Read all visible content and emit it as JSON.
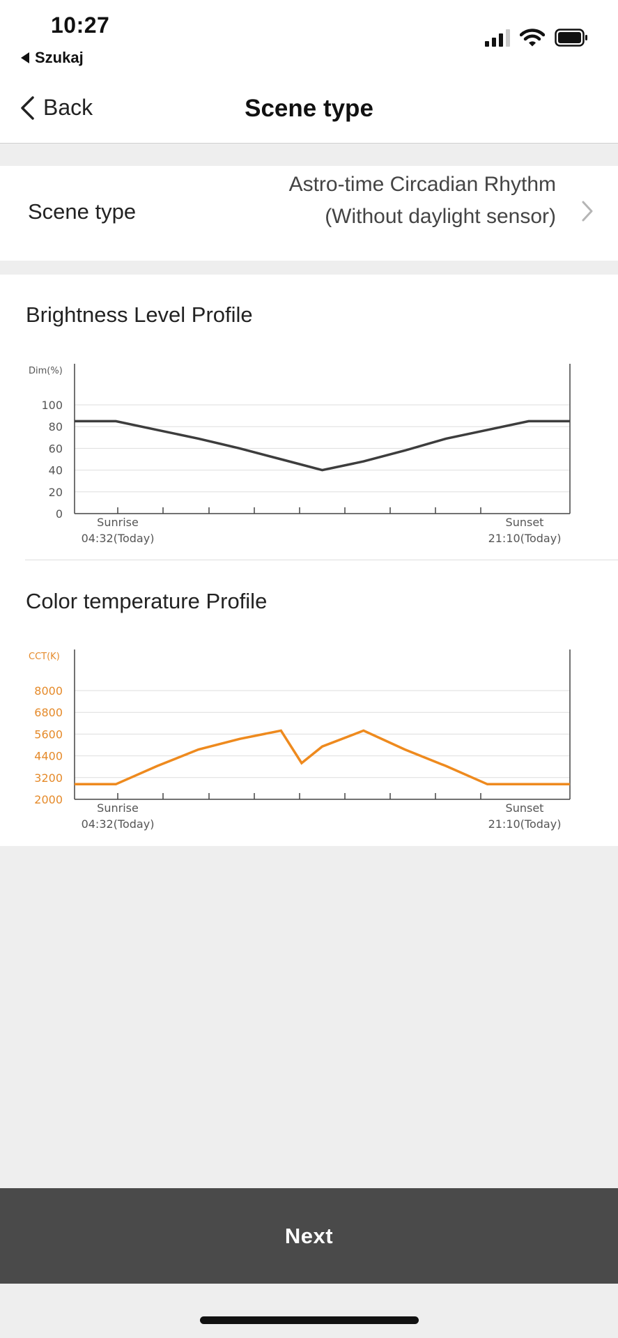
{
  "status_bar": {
    "time": "10:27",
    "back_app_label": "Szukaj"
  },
  "nav": {
    "back_label": "Back",
    "title": "Scene type"
  },
  "scene_row": {
    "label": "Scene type",
    "value": "Astro-time Circadian Rhythm (Without daylight sensor)"
  },
  "next_label": "Next",
  "colors": {
    "brightness_line": "#3d3d3d",
    "cct_line": "#ee8a1e",
    "cct_axis_text": "#e58a2a",
    "button_bar": "#4a4a4a"
  },
  "chart_data": [
    {
      "type": "line",
      "title": "Brightness Level Profile",
      "ylabel": "Dim(%)",
      "ylim": [
        0,
        100
      ],
      "yticks": [
        "100",
        "80",
        "60",
        "40",
        "20",
        "0"
      ],
      "x_start_label": [
        "Sunrise",
        "04:32(Today)"
      ],
      "x_end_label": [
        "Sunset",
        "21:10(Today)"
      ],
      "x_range": [
        -1,
        11
      ],
      "x": [
        -1,
        0,
        1,
        2,
        3,
        4,
        5,
        6,
        7,
        8,
        9,
        10,
        11
      ],
      "values": [
        85,
        85,
        77,
        69,
        60,
        50,
        40,
        48,
        58,
        69,
        77,
        85,
        85
      ],
      "grid": true
    },
    {
      "type": "line",
      "title": "Color temperature Profile",
      "ylabel": "CCT(K)",
      "ylim": [
        2000,
        9200
      ],
      "yticks": [
        "8000",
        "6800",
        "5600",
        "4400",
        "3200",
        "2000"
      ],
      "x_start_label": [
        "Sunrise",
        "04:32(Today)"
      ],
      "x_end_label": [
        "Sunset",
        "21:10(Today)"
      ],
      "x_range": [
        -1,
        11
      ],
      "x": [
        -1,
        0,
        1,
        2,
        3,
        4,
        4.5,
        5,
        6,
        7,
        8,
        9,
        10,
        11
      ],
      "values": [
        3000,
        3000,
        4200,
        5300,
        6000,
        6550,
        4400,
        5500,
        6550,
        5300,
        4200,
        3000,
        3000,
        3000
      ],
      "grid": true
    }
  ]
}
